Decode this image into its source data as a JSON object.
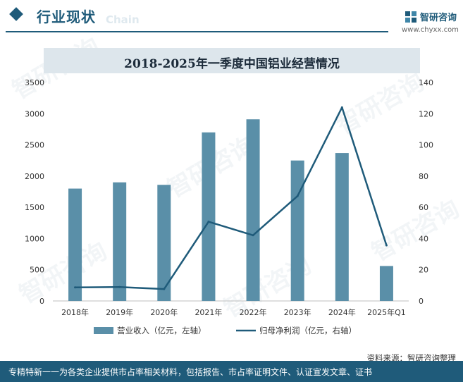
{
  "header": {
    "title": "行业现状",
    "ghost_text": "Chain"
  },
  "brand": {
    "name": "智研咨询",
    "url": "www.chyxx.com"
  },
  "watermark": "智研咨询",
  "source": "资料来源：智研咨询整理",
  "footer": {
    "text": "专精特新一一为各类企业提供市占率相关材料，包括报告、市占率证明文件、认证宣发文章、证书"
  },
  "colors": {
    "bar": "#5a8fa8",
    "line": "#1f5b7a",
    "accent": "#1f5b7a",
    "title_band": "#dde6ec"
  },
  "chart_data": {
    "type": "bar",
    "title": "2018-2025年一季度中国铝业经营情况",
    "categories": [
      "2018年",
      "2019年",
      "2020年",
      "2021年",
      "2022年",
      "2023年",
      "2024年",
      "2025年Q1"
    ],
    "series": [
      {
        "name": "营业收入（亿元，左轴）",
        "type": "bar",
        "axis": "left",
        "values": [
          1800,
          1900,
          1860,
          2700,
          2910,
          2250,
          2370,
          560
        ]
      },
      {
        "name": "归母净利润（亿元，右轴）",
        "type": "line",
        "axis": "right",
        "values": [
          8.7,
          8.9,
          7.6,
          50.8,
          42.1,
          67.2,
          124.0,
          35.6
        ]
      }
    ],
    "y_left": {
      "min": 0,
      "max": 3500,
      "ticks": [
        0,
        500,
        1000,
        1500,
        2000,
        2500,
        3000,
        3500
      ]
    },
    "y_right": {
      "min": 0,
      "max": 140,
      "ticks": [
        0,
        20,
        40,
        60,
        80,
        100,
        120,
        140
      ]
    },
    "grid": false,
    "legend": "bottom"
  }
}
